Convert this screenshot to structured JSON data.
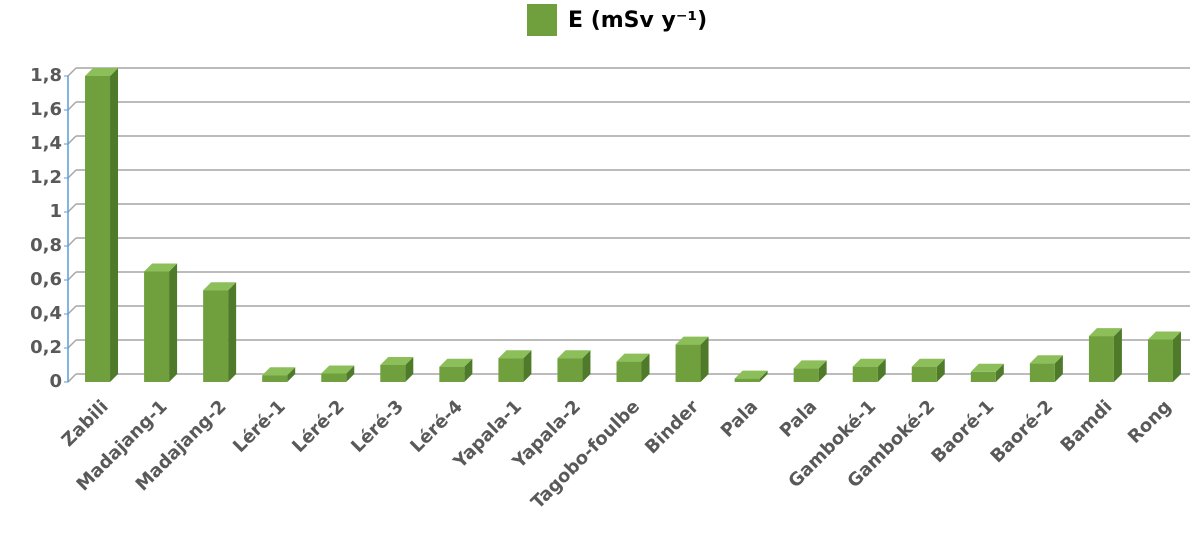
{
  "chart_data": {
    "type": "bar3d",
    "categories": [
      "Zabili",
      "Madajang-1",
      "Madajang-2",
      "Léré-1",
      "Léré-2",
      "Léré-3",
      "Léré-4",
      "Yapala-1",
      "Yapala-2",
      "Tagobo-foulbe",
      "Binder",
      "Pala",
      "Pala",
      "Gamboké-1",
      "Gamboké-2",
      "Baoré-1",
      "Baoré-2",
      "Bamdi",
      "Rong"
    ],
    "series": [
      {
        "name": "E (mSv y⁻¹)",
        "color": "#70a03e",
        "values": [
          1.8,
          0.65,
          0.54,
          0.04,
          0.05,
          0.1,
          0.09,
          0.14,
          0.14,
          0.12,
          0.22,
          0.02,
          0.08,
          0.09,
          0.09,
          0.06,
          0.11,
          0.27,
          0.25
        ]
      }
    ],
    "ylim": [
      0,
      1.8
    ],
    "yticks": [
      0,
      {
        "value": 0.2,
        "label": "0,2"
      },
      {
        "value": 0.4,
        "label": "0,4"
      },
      {
        "value": 0.6,
        "label": "0,6"
      },
      {
        "value": 0.8,
        "label": "0,8"
      },
      1,
      {
        "value": 1.2,
        "label": "1,2"
      },
      {
        "value": 1.4,
        "label": "1,4"
      },
      {
        "value": 1.6,
        "label": "1,6"
      },
      {
        "value": 1.8,
        "label": "1,8"
      }
    ],
    "grid": true,
    "legend": "top"
  }
}
